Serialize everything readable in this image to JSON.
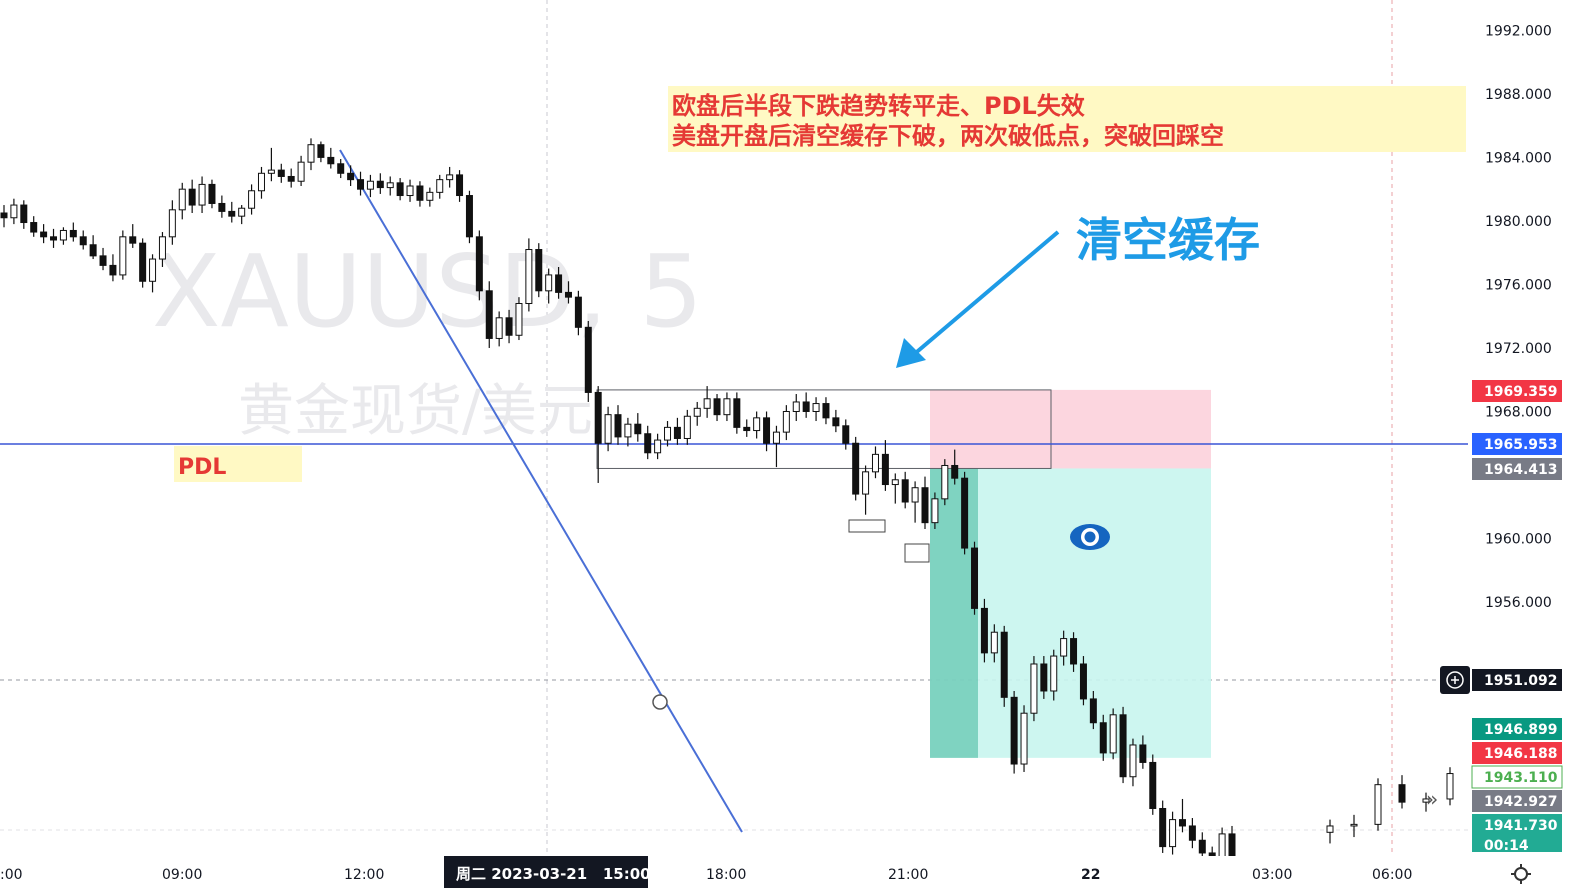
{
  "chart_data": {
    "type": "candlestick",
    "symbol_watermark": "XAUUSD, 5",
    "name_watermark": "黄金现货/美元",
    "y_ticks": [
      1992,
      1988,
      1984,
      1980,
      1976,
      1972,
      1968,
      1960,
      1956
    ],
    "y_tick_labels": [
      "1992.000",
      "1988.000",
      "1984.000",
      "1980.000",
      "1976.000",
      "1972.000",
      "1968.000",
      "1960.000",
      "1956.000"
    ],
    "x_tick_labels": [
      ":00",
      "09:00",
      "12:00",
      "18:00",
      "21:00",
      "22",
      "03:00",
      "06:00"
    ],
    "x_cursor_label": "周二 2023-03-21   15:00",
    "pdl_level": 1965.953,
    "annotation": {
      "line1": "欧盘后半段下跌趋势转平走、PDL失效",
      "line2": "美盘开盘后清空缓存下破，两次破低点，突破回踩空"
    },
    "callout": "清空缓存",
    "pdl_label": "PDL",
    "price_tags": [
      {
        "value": "1969.359",
        "bg": "#f23645",
        "fg": "#ffffff"
      },
      {
        "value": "1965.953",
        "bg": "#2962ff",
        "fg": "#ffffff"
      },
      {
        "value": "1964.413",
        "bg": "#787b86",
        "fg": "#ffffff"
      },
      {
        "value": "1951.092",
        "bg": "#131722",
        "fg": "#ffffff"
      },
      {
        "value": "1946.899",
        "bg": "#089981",
        "fg": "#ffffff"
      },
      {
        "value": "1946.188",
        "bg": "#f23645",
        "fg": "#ffffff"
      },
      {
        "value": "1943.110",
        "bg": "#ffffff",
        "fg": "#4caf50"
      },
      {
        "value": "1942.927",
        "bg": "#787b86",
        "fg": "#ffffff"
      },
      {
        "value": "1941.730",
        "bg": "#22ab94",
        "fg": "#ffffff"
      }
    ],
    "countdown": "00:14",
    "position": {
      "entry": 1964.413,
      "stop": 1969.359,
      "target": 1946.188
    },
    "range_box": {
      "top": 1969.359,
      "bottom": 1964.413
    },
    "candles": [
      [
        1980.5,
        1981.0,
        1979.6,
        1980.2
      ],
      [
        1980.2,
        1981.4,
        1979.8,
        1981.0
      ],
      [
        1981.0,
        1981.3,
        1979.5,
        1979.9
      ],
      [
        1979.9,
        1980.3,
        1979.0,
        1979.3
      ],
      [
        1979.3,
        1979.8,
        1978.6,
        1979.0
      ],
      [
        1979.0,
        1979.5,
        1978.3,
        1978.8
      ],
      [
        1978.8,
        1979.6,
        1978.5,
        1979.4
      ],
      [
        1979.4,
        1979.9,
        1978.7,
        1979.0
      ],
      [
        1979.0,
        1979.4,
        1978.2,
        1978.5
      ],
      [
        1978.5,
        1979.1,
        1977.6,
        1977.8
      ],
      [
        1977.8,
        1978.3,
        1976.9,
        1977.2
      ],
      [
        1977.2,
        1977.9,
        1976.2,
        1976.6
      ],
      [
        1976.6,
        1979.4,
        1976.3,
        1979.0
      ],
      [
        1979.0,
        1979.8,
        1978.3,
        1978.6
      ],
      [
        1978.6,
        1978.9,
        1975.8,
        1976.2
      ],
      [
        1976.2,
        1977.9,
        1975.5,
        1977.6
      ],
      [
        1977.6,
        1979.3,
        1977.1,
        1979.0
      ],
      [
        1979.0,
        1981.3,
        1978.5,
        1980.7
      ],
      [
        1980.7,
        1982.4,
        1980.1,
        1982.0
      ],
      [
        1982.0,
        1982.6,
        1980.5,
        1981.0
      ],
      [
        1981.0,
        1982.8,
        1980.5,
        1982.3
      ],
      [
        1982.3,
        1982.6,
        1980.8,
        1981.1
      ],
      [
        1981.1,
        1981.6,
        1980.2,
        1980.6
      ],
      [
        1980.6,
        1981.2,
        1979.9,
        1980.3
      ],
      [
        1980.3,
        1981.0,
        1979.8,
        1980.8
      ],
      [
        1980.8,
        1982.3,
        1980.4,
        1981.9
      ],
      [
        1981.9,
        1983.4,
        1981.4,
        1983.0
      ],
      [
        1983.0,
        1984.6,
        1982.5,
        1983.2
      ],
      [
        1983.2,
        1983.6,
        1982.4,
        1982.8
      ],
      [
        1982.8,
        1983.3,
        1982.1,
        1982.5
      ],
      [
        1982.5,
        1984.1,
        1982.2,
        1983.7
      ],
      [
        1983.7,
        1985.2,
        1983.2,
        1984.8
      ],
      [
        1984.8,
        1985.0,
        1983.7,
        1984.0
      ],
      [
        1984.0,
        1984.6,
        1983.3,
        1983.6
      ],
      [
        1983.6,
        1983.9,
        1982.7,
        1983.0
      ],
      [
        1983.0,
        1983.5,
        1982.2,
        1982.6
      ],
      [
        1982.6,
        1983.1,
        1981.6,
        1982.0
      ],
      [
        1982.0,
        1982.9,
        1981.5,
        1982.5
      ],
      [
        1982.5,
        1983.0,
        1981.7,
        1982.1
      ],
      [
        1982.1,
        1982.8,
        1981.6,
        1982.4
      ],
      [
        1982.4,
        1982.7,
        1981.3,
        1981.6
      ],
      [
        1981.6,
        1982.6,
        1981.2,
        1982.2
      ],
      [
        1982.2,
        1982.5,
        1980.9,
        1981.3
      ],
      [
        1981.3,
        1982.1,
        1980.9,
        1981.8
      ],
      [
        1981.8,
        1982.9,
        1981.4,
        1982.6
      ],
      [
        1982.6,
        1983.4,
        1982.1,
        1982.9
      ],
      [
        1982.9,
        1983.2,
        1981.2,
        1981.6
      ],
      [
        1981.6,
        1981.9,
        1978.6,
        1979.0
      ],
      [
        1979.0,
        1979.4,
        1975.0,
        1975.6
      ],
      [
        1975.6,
        1976.2,
        1972.0,
        1972.6
      ],
      [
        1972.6,
        1974.3,
        1972.1,
        1973.9
      ],
      [
        1973.9,
        1974.4,
        1972.3,
        1972.8
      ],
      [
        1972.8,
        1975.2,
        1972.5,
        1974.8
      ],
      [
        1974.8,
        1978.9,
        1974.3,
        1978.2
      ],
      [
        1978.2,
        1978.6,
        1975.2,
        1975.6
      ],
      [
        1975.6,
        1977.0,
        1974.8,
        1976.6
      ],
      [
        1976.6,
        1977.1,
        1975.1,
        1975.5
      ],
      [
        1975.5,
        1976.2,
        1974.8,
        1975.2
      ],
      [
        1975.2,
        1975.6,
        1972.8,
        1973.3
      ],
      [
        1973.3,
        1973.7,
        1968.6,
        1969.2
      ],
      [
        1969.2,
        1969.6,
        1963.5,
        1966.0
      ],
      [
        1966.0,
        1968.3,
        1965.5,
        1967.8
      ],
      [
        1967.8,
        1968.4,
        1965.9,
        1966.4
      ],
      [
        1966.4,
        1967.6,
        1965.8,
        1967.2
      ],
      [
        1967.2,
        1967.9,
        1966.1,
        1966.6
      ],
      [
        1966.6,
        1967.1,
        1965.0,
        1965.4
      ],
      [
        1965.4,
        1966.6,
        1965.0,
        1966.2
      ],
      [
        1966.2,
        1967.4,
        1965.8,
        1967.0
      ],
      [
        1967.0,
        1967.6,
        1965.9,
        1966.3
      ],
      [
        1966.3,
        1968.1,
        1965.9,
        1967.7
      ],
      [
        1967.7,
        1968.6,
        1967.1,
        1968.2
      ],
      [
        1968.2,
        1969.6,
        1967.6,
        1968.8
      ],
      [
        1968.8,
        1969.1,
        1967.4,
        1967.8
      ],
      [
        1967.8,
        1969.2,
        1967.4,
        1968.8
      ],
      [
        1968.8,
        1969.2,
        1966.6,
        1967.0
      ],
      [
        1967.0,
        1967.5,
        1966.4,
        1966.8
      ],
      [
        1966.8,
        1968.0,
        1966.3,
        1967.6
      ],
      [
        1967.6,
        1968.0,
        1965.5,
        1966.0
      ],
      [
        1966.0,
        1967.1,
        1964.5,
        1966.7
      ],
      [
        1966.7,
        1968.4,
        1966.2,
        1968.0
      ],
      [
        1968.0,
        1969.1,
        1967.4,
        1968.6
      ],
      [
        1968.6,
        1969.2,
        1967.6,
        1968.0
      ],
      [
        1968.0,
        1968.9,
        1967.4,
        1968.5
      ],
      [
        1968.5,
        1968.9,
        1967.2,
        1967.6
      ],
      [
        1967.6,
        1968.1,
        1966.7,
        1967.1
      ],
      [
        1967.1,
        1967.5,
        1965.6,
        1966.0
      ],
      [
        1966.0,
        1966.4,
        1962.4,
        1962.8
      ],
      [
        1962.8,
        1964.6,
        1961.5,
        1964.2
      ],
      [
        1964.2,
        1965.8,
        1963.8,
        1965.3
      ],
      [
        1965.3,
        1966.2,
        1963.0,
        1963.4
      ],
      [
        1963.4,
        1964.1,
        1962.2,
        1963.7
      ],
      [
        1963.7,
        1964.2,
        1961.9,
        1962.3
      ],
      [
        1962.3,
        1963.6,
        1961.0,
        1963.2
      ],
      [
        1963.2,
        1963.9,
        1960.6,
        1961.0
      ],
      [
        1961.0,
        1962.9,
        1960.6,
        1962.5
      ],
      [
        1962.5,
        1965.0,
        1962.1,
        1964.6
      ],
      [
        1964.6,
        1965.6,
        1963.4,
        1963.8
      ],
      [
        1963.8,
        1964.2,
        1959.0,
        1959.4
      ],
      [
        1959.4,
        1959.8,
        1955.2,
        1955.6
      ],
      [
        1955.6,
        1956.2,
        1952.2,
        1952.8
      ],
      [
        1952.8,
        1954.6,
        1952.2,
        1954.1
      ],
      [
        1954.1,
        1954.5,
        1949.4,
        1950.0
      ],
      [
        1950.0,
        1950.4,
        1945.2,
        1945.8
      ],
      [
        1945.8,
        1949.5,
        1945.3,
        1949.0
      ],
      [
        1949.0,
        1952.6,
        1948.5,
        1952.1
      ],
      [
        1952.1,
        1952.6,
        1949.9,
        1950.4
      ],
      [
        1950.4,
        1953.0,
        1949.8,
        1952.6
      ],
      [
        1952.6,
        1954.2,
        1952.0,
        1953.7
      ],
      [
        1953.7,
        1954.1,
        1951.6,
        1952.1
      ],
      [
        1952.1,
        1952.6,
        1949.5,
        1949.9
      ],
      [
        1949.9,
        1950.4,
        1948.0,
        1948.4
      ],
      [
        1948.4,
        1948.9,
        1946.0,
        1946.5
      ],
      [
        1946.5,
        1949.3,
        1946.1,
        1948.9
      ],
      [
        1948.9,
        1949.4,
        1944.6,
        1945.0
      ],
      [
        1945.0,
        1947.4,
        1944.4,
        1947.0
      ],
      [
        1947.0,
        1947.6,
        1945.5,
        1945.9
      ],
      [
        1945.9,
        1946.4,
        1942.6,
        1943.0
      ],
      [
        1943.0,
        1943.5,
        1940.2,
        1940.6
      ],
      [
        1940.6,
        1942.8,
        1940.1,
        1942.3
      ],
      [
        1942.3,
        1943.6,
        1941.5,
        1941.9
      ],
      [
        1941.9,
        1942.4,
        1940.5,
        1941.0
      ],
      [
        1941.0,
        1941.5,
        1939.8,
        1940.2
      ],
      [
        1940.2,
        1940.6,
        1939.5,
        1939.9
      ],
      [
        1939.9,
        1941.8,
        1939.5,
        1941.4
      ],
      [
        1941.4,
        1941.9,
        1939.6,
        1940.0
      ]
    ]
  },
  "icons": {
    "position_tool": "eye-icon",
    "crosshair": "plus-circle-icon",
    "scroll": "double-chevron-right-icon",
    "settings": "gear-icon",
    "drag_handle": "circle-handle-icon"
  }
}
